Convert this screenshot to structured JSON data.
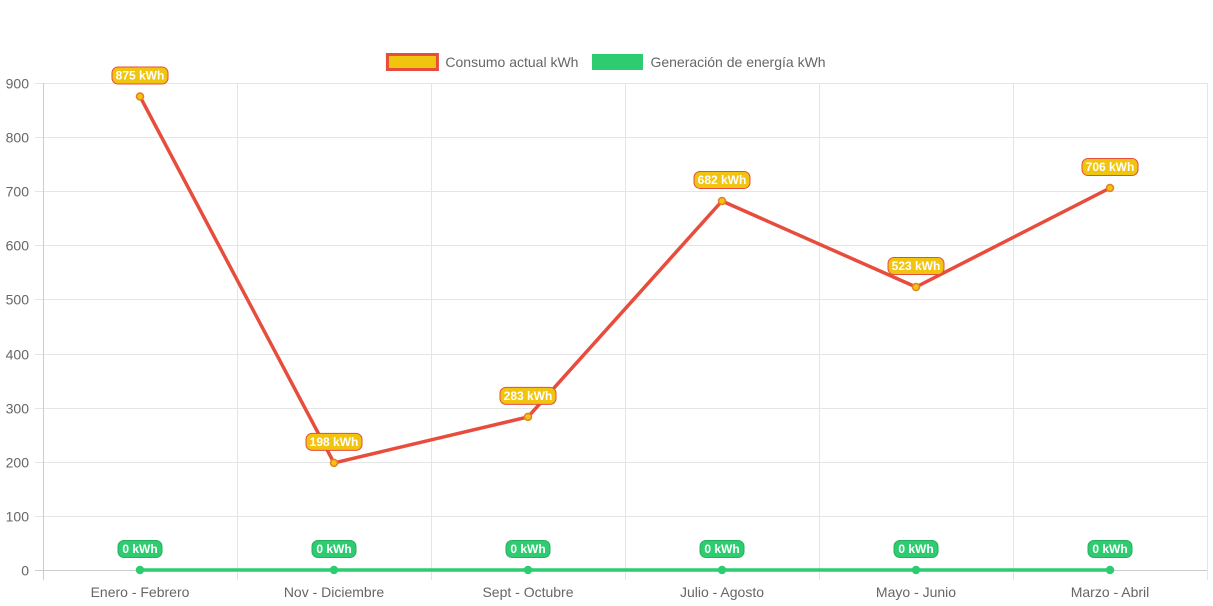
{
  "chart_data": {
    "type": "line",
    "categories": [
      "Enero - Febrero",
      "Nov - Diciembre",
      "Sept - Octubre",
      "Julio - Agosto",
      "Mayo - Junio",
      "Marzo - Abril"
    ],
    "series": [
      {
        "name": "Consumo actual kWh",
        "values": [
          875,
          198,
          283,
          682,
          523,
          706
        ],
        "labels": [
          "875 kWh",
          "198 kWh",
          "283 kWh",
          "682 kWh",
          "523 kWh",
          "706 kWh"
        ],
        "line_color": "#e74c3c",
        "fill_color": "#f1c40f"
      },
      {
        "name": "Generación de energía kWh",
        "values": [
          0,
          0,
          0,
          0,
          0,
          0
        ],
        "labels": [
          "0 kWh",
          "0 kWh",
          "0 kWh",
          "0 kWh",
          "0 kWh",
          "0 kWh"
        ],
        "line_color": "#2ecc71",
        "fill_color": "#2ecc71"
      }
    ],
    "ylim": [
      0,
      900
    ],
    "yticks": [
      0,
      100,
      200,
      300,
      400,
      500,
      600,
      700,
      800,
      900
    ],
    "ytick_labels": [
      "0",
      "100",
      "200",
      "300",
      "400",
      "500",
      "600",
      "700",
      "800",
      "900"
    ],
    "grid": true,
    "legend_position": "top-center",
    "colors": {
      "grid": "#e5e5e5",
      "axis": "#cccccc",
      "text": "#666666"
    }
  }
}
